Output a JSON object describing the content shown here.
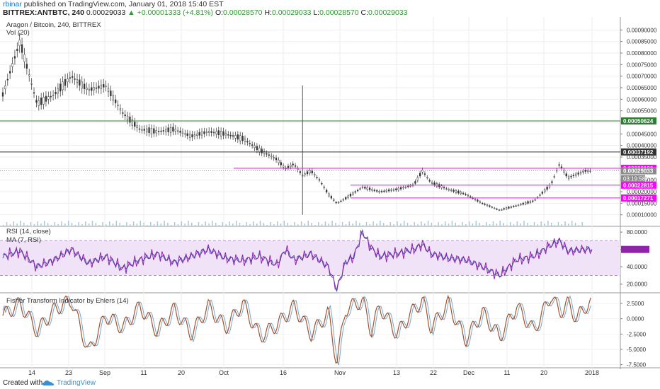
{
  "header": {
    "author": "rbinar",
    "published": "published on TradingView.com, January 01, 2018 15:40 EST",
    "symbol": "BITTREX:ANTBTC, 240",
    "last": "0.00029033",
    "change": "+0.00001333 (+4.81%)",
    "o_label": "O:",
    "o_value": "0.00028570",
    "h_label": "H:",
    "h_value": "0.00029033",
    "l_label": "L:",
    "l_value": "0.00028570",
    "c_label": "C:",
    "c_value": "0.00029033"
  },
  "footer": {
    "created_with": "Created with",
    "brand": "TradingView"
  },
  "colors": {
    "accent": "#2c9a2c",
    "rsi_fill": "#f0e2f7",
    "magenta": "#ff00ff",
    "fisher": "#a0522d"
  },
  "chart_data": [
    {
      "type": "candlestick",
      "title": "Aragon / Bitcoin, 240, BITTREX",
      "legend": "Vol (20)",
      "ylim": [
        5e-05,
        0.00095
      ],
      "y_ticks": [
        "0.00090000",
        "0.00085000",
        "0.00080000",
        "0.00075000",
        "0.00070000",
        "0.00065000",
        "0.00060000",
        "0.00055000",
        "0.00050000",
        "0.00045000",
        "0.00040000",
        "0.00035000",
        "0.00030000",
        "0.00025000",
        "0.00020000",
        "0.00015000",
        "0.00010000"
      ],
      "x_ticks": [
        "14",
        "23",
        "Sep",
        "11",
        "20",
        "Oct",
        "16",
        "Nov",
        "13",
        "22",
        "Dec",
        "11",
        "20",
        "2018"
      ],
      "price_series": [
        [
          0,
          0.00062
        ],
        [
          10,
          0.00085
        ],
        [
          20,
          0.00058
        ],
        [
          30,
          0.00062
        ],
        [
          40,
          0.0007
        ],
        [
          50,
          0.00064
        ],
        [
          60,
          0.00066
        ],
        [
          70,
          0.00054
        ],
        [
          80,
          0.00047
        ],
        [
          90,
          0.00046
        ],
        [
          100,
          0.00047
        ],
        [
          110,
          0.00044
        ],
        [
          120,
          0.00046
        ],
        [
          130,
          0.00045
        ],
        [
          140,
          0.00043
        ],
        [
          150,
          0.00038
        ],
        [
          160,
          0.00034
        ],
        [
          165,
          0.0003
        ],
        [
          170,
          0.00032
        ],
        [
          175,
          0.00027
        ],
        [
          180,
          0.00029
        ],
        [
          185,
          0.00025
        ],
        [
          190,
          0.00019
        ],
        [
          195,
          0.00015
        ],
        [
          200,
          0.00017
        ],
        [
          210,
          0.00022
        ],
        [
          220,
          0.0002
        ],
        [
          230,
          0.00021
        ],
        [
          240,
          0.00023
        ],
        [
          245,
          0.00029
        ],
        [
          250,
          0.00024
        ],
        [
          260,
          0.00021
        ],
        [
          270,
          0.00019
        ],
        [
          280,
          0.00015
        ],
        [
          290,
          0.00012
        ],
        [
          300,
          0.00014
        ],
        [
          310,
          0.00016
        ],
        [
          320,
          0.00023
        ],
        [
          325,
          0.00032
        ],
        [
          330,
          0.00026
        ],
        [
          340,
          0.00029
        ],
        [
          344,
          0.00029033
        ]
      ],
      "levels": [
        {
          "label": "0.00050624",
          "value": 0.00050624,
          "color": "#2e7d32",
          "style": "solid"
        },
        {
          "label": "0.00037192",
          "value": 0.00037192,
          "color": "#333333",
          "style": "solid"
        },
        {
          "label": "0.00030130",
          "value": 0.0003013,
          "color": "#ff00ff",
          "style": "solid"
        },
        {
          "label": "0.00029033",
          "value": 0.00029033,
          "color": "#8a8a8a",
          "style": "dotted"
        },
        {
          "label": "0.00022815",
          "value": 0.00022815,
          "color": "#ff00ff",
          "style": "solid"
        },
        {
          "label": "0.00017271",
          "value": 0.00017271,
          "color": "#ff00ff",
          "style": "solid"
        }
      ],
      "countdown": "03:19:58"
    },
    {
      "type": "line",
      "title": "RSI (14, close)",
      "legend": "MA (7, RSI)",
      "ylim": [
        10,
        85
      ],
      "y_ticks": [
        "80.0000",
        "60.0000",
        "40.0000",
        "20.0000"
      ],
      "band": [
        30,
        70
      ],
      "series": [
        [
          0,
          52
        ],
        [
          10,
          58
        ],
        [
          20,
          40
        ],
        [
          30,
          48
        ],
        [
          40,
          60
        ],
        [
          50,
          44
        ],
        [
          60,
          52
        ],
        [
          70,
          38
        ],
        [
          80,
          48
        ],
        [
          90,
          55
        ],
        [
          100,
          45
        ],
        [
          110,
          52
        ],
        [
          120,
          60
        ],
        [
          130,
          50
        ],
        [
          140,
          47
        ],
        [
          150,
          52
        ],
        [
          160,
          42
        ],
        [
          165,
          60
        ],
        [
          170,
          48
        ],
        [
          180,
          55
        ],
        [
          190,
          40
        ],
        [
          195,
          14
        ],
        [
          200,
          45
        ],
        [
          205,
          52
        ],
        [
          210,
          80
        ],
        [
          215,
          62
        ],
        [
          220,
          52
        ],
        [
          230,
          55
        ],
        [
          240,
          60
        ],
        [
          245,
          66
        ],
        [
          250,
          55
        ],
        [
          260,
          50
        ],
        [
          270,
          48
        ],
        [
          280,
          40
        ],
        [
          290,
          30
        ],
        [
          300,
          48
        ],
        [
          310,
          52
        ],
        [
          320,
          65
        ],
        [
          325,
          70
        ],
        [
          330,
          58
        ],
        [
          340,
          60
        ],
        [
          344,
          60
        ]
      ]
    },
    {
      "type": "line",
      "title": "Fisher Transform Indicator by Ehlers (14)",
      "ylim": [
        -8,
        4
      ],
      "y_ticks": [
        "2.5000",
        "0.0000",
        "-2.5000",
        "-5.0000",
        "-7.5000"
      ],
      "series": [
        [
          0,
          0.5
        ],
        [
          10,
          2.5
        ],
        [
          20,
          -2
        ],
        [
          30,
          1.5
        ],
        [
          40,
          3
        ],
        [
          50,
          -5.5
        ],
        [
          60,
          0.5
        ],
        [
          70,
          -1.5
        ],
        [
          80,
          2
        ],
        [
          90,
          -2
        ],
        [
          100,
          1.5
        ],
        [
          110,
          -2.5
        ],
        [
          120,
          2
        ],
        [
          130,
          -1.5
        ],
        [
          140,
          2.5
        ],
        [
          150,
          -3
        ],
        [
          160,
          -1
        ],
        [
          170,
          2
        ],
        [
          180,
          -2.5
        ],
        [
          190,
          1
        ],
        [
          195,
          -7.2
        ],
        [
          200,
          1.5
        ],
        [
          210,
          3
        ],
        [
          215,
          -2
        ],
        [
          220,
          2
        ],
        [
          230,
          -2.5
        ],
        [
          240,
          1.5
        ],
        [
          245,
          3
        ],
        [
          250,
          -1.5
        ],
        [
          260,
          2.5
        ],
        [
          270,
          -3.5
        ],
        [
          280,
          1
        ],
        [
          290,
          -3
        ],
        [
          300,
          2
        ],
        [
          310,
          -2
        ],
        [
          320,
          3.8
        ],
        [
          325,
          1
        ],
        [
          330,
          2.5
        ],
        [
          335,
          0
        ],
        [
          340,
          2
        ],
        [
          344,
          2.5
        ]
      ]
    }
  ]
}
